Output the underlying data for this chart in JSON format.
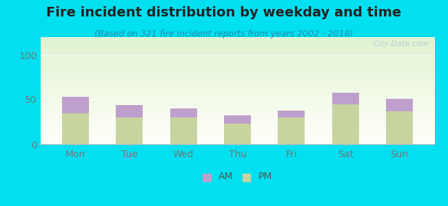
{
  "title": "Fire incident distribution by weekday and time",
  "subtitle": "(Based on 321 fire incident reports from years 2002 - 2018)",
  "categories": [
    "Mon",
    "Tue",
    "Wed",
    "Thu",
    "Fri",
    "Sat",
    "Sun"
  ],
  "pm_values": [
    35,
    30,
    30,
    23,
    30,
    45,
    37
  ],
  "am_values": [
    18,
    14,
    10,
    9,
    8,
    13,
    14
  ],
  "am_color": "#bf9fcc",
  "pm_color": "#c8d4a0",
  "background_outer": "#00e0f0",
  "ylim": [
    0,
    120
  ],
  "yticks": [
    0,
    50,
    100
  ],
  "bar_width": 0.5,
  "title_fontsize": 14,
  "subtitle_fontsize": 9,
  "tick_fontsize": 10,
  "legend_fontsize": 10,
  "title_color": "#222222",
  "subtitle_color": "#2288aa",
  "tick_color": "#777777",
  "watermark": "  City-Data.com"
}
